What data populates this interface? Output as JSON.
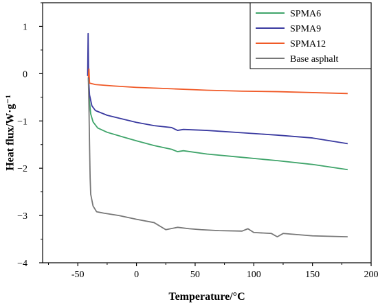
{
  "chart_data": {
    "type": "line",
    "title": "",
    "xlabel": "Temperature/°C",
    "ylabel": "Heat flux/W·g⁻¹",
    "xlim": [
      -80,
      200
    ],
    "ylim": [
      -4,
      1.5
    ],
    "x_ticks": [
      -50,
      0,
      50,
      100,
      150,
      200
    ],
    "y_ticks": [
      -4,
      -3,
      -2,
      -1,
      0,
      1
    ],
    "x_tick_labels": [
      "-50",
      "0",
      "50",
      "100",
      "150",
      "200"
    ],
    "y_tick_labels": [
      "−4",
      "−3",
      "−2",
      "−1",
      "0",
      "1"
    ],
    "grid": false,
    "legend_position": "top-right",
    "series": [
      {
        "name": "SPMA6",
        "color": "#3fa46a",
        "points": [
          [
            -41,
            -0.08
          ],
          [
            -40,
            -0.6
          ],
          [
            -39,
            -0.85
          ],
          [
            -37,
            -1.02
          ],
          [
            -33,
            -1.15
          ],
          [
            -25,
            -1.24
          ],
          [
            -10,
            -1.35
          ],
          [
            0,
            -1.42
          ],
          [
            15,
            -1.52
          ],
          [
            30,
            -1.6
          ],
          [
            35,
            -1.65
          ],
          [
            40,
            -1.63
          ],
          [
            60,
            -1.7
          ],
          [
            90,
            -1.77
          ],
          [
            120,
            -1.84
          ],
          [
            150,
            -1.92
          ],
          [
            180,
            -2.03
          ]
        ]
      },
      {
        "name": "SPMA9",
        "color": "#3a3aa0",
        "points": [
          [
            -41.6,
            -0.05
          ],
          [
            -41.2,
            0.85
          ],
          [
            -40.8,
            -0.1
          ],
          [
            -40,
            -0.45
          ],
          [
            -38,
            -0.68
          ],
          [
            -35,
            -0.78
          ],
          [
            -25,
            -0.88
          ],
          [
            -10,
            -0.97
          ],
          [
            0,
            -1.03
          ],
          [
            15,
            -1.1
          ],
          [
            30,
            -1.14
          ],
          [
            35,
            -1.2
          ],
          [
            40,
            -1.18
          ],
          [
            60,
            -1.2
          ],
          [
            90,
            -1.25
          ],
          [
            120,
            -1.3
          ],
          [
            150,
            -1.36
          ],
          [
            180,
            -1.48
          ]
        ]
      },
      {
        "name": "SPMA12",
        "color": "#f05a28",
        "points": [
          [
            -41,
            -0.08
          ],
          [
            -40.5,
            0.1
          ],
          [
            -40,
            -0.2
          ],
          [
            -35,
            -0.23
          ],
          [
            -20,
            -0.26
          ],
          [
            0,
            -0.29
          ],
          [
            30,
            -0.32
          ],
          [
            60,
            -0.35
          ],
          [
            90,
            -0.37
          ],
          [
            120,
            -0.38
          ],
          [
            150,
            -0.4
          ],
          [
            180,
            -0.42
          ]
        ]
      },
      {
        "name": "Base asphalt",
        "color": "#777777",
        "points": [
          [
            -41,
            -0.1
          ],
          [
            -40.5,
            -0.7
          ],
          [
            -40,
            -1.5
          ],
          [
            -39.5,
            -2.2
          ],
          [
            -39,
            -2.55
          ],
          [
            -37,
            -2.8
          ],
          [
            -34,
            -2.92
          ],
          [
            -28,
            -2.95
          ],
          [
            -15,
            -3.0
          ],
          [
            0,
            -3.08
          ],
          [
            15,
            -3.15
          ],
          [
            25,
            -3.3
          ],
          [
            35,
            -3.25
          ],
          [
            45,
            -3.28
          ],
          [
            55,
            -3.3
          ],
          [
            70,
            -3.32
          ],
          [
            90,
            -3.33
          ],
          [
            95,
            -3.28
          ],
          [
            100,
            -3.36
          ],
          [
            115,
            -3.38
          ],
          [
            120,
            -3.45
          ],
          [
            125,
            -3.38
          ],
          [
            150,
            -3.43
          ],
          [
            180,
            -3.45
          ]
        ]
      }
    ]
  }
}
